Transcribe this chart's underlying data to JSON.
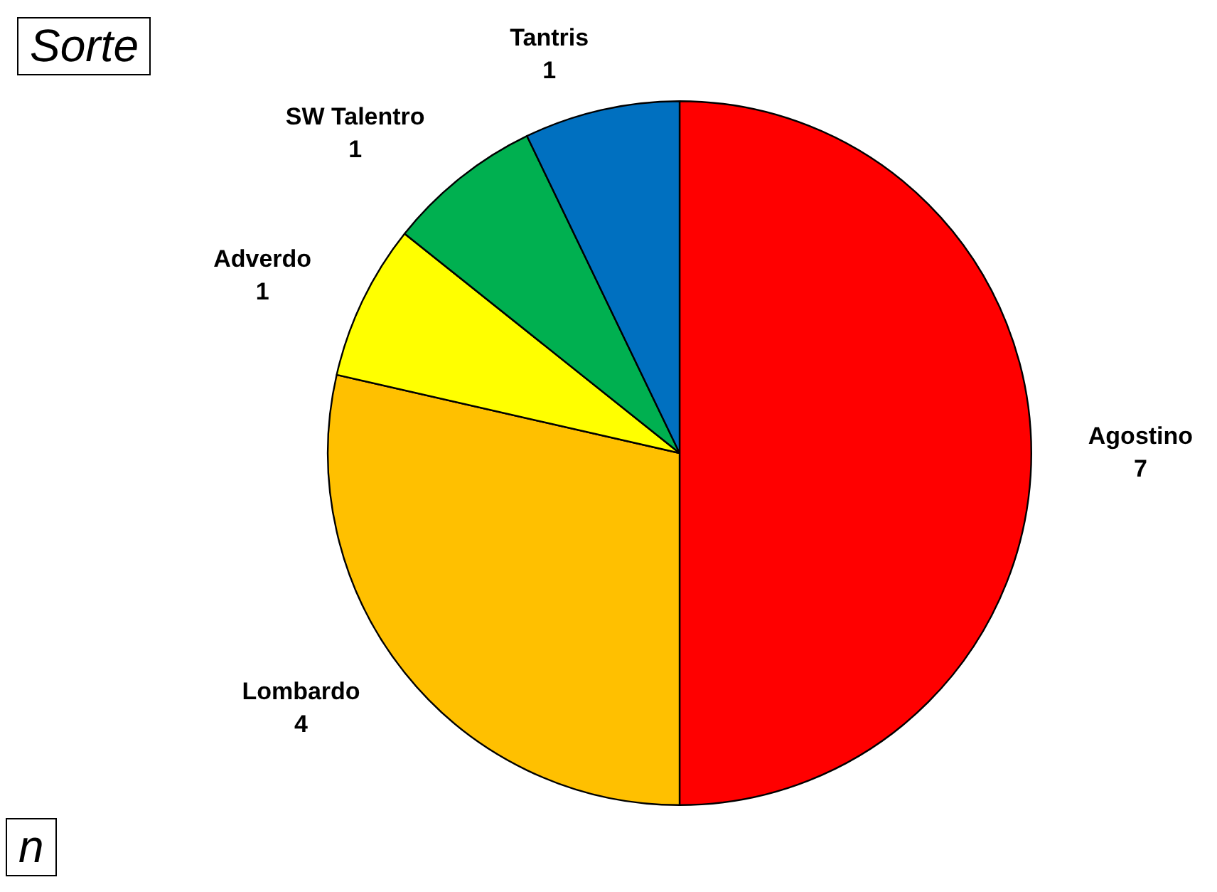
{
  "chart_data": {
    "type": "pie",
    "title": "Sorte",
    "categories": [
      "Agostino",
      "Lombardo",
      "Adverdo",
      "SW Talentro",
      "Tantris"
    ],
    "values": [
      7,
      4,
      1,
      1,
      1
    ],
    "colors": [
      "#ff0000",
      "#ffc000",
      "#ffff00",
      "#00b050",
      "#0070c0"
    ],
    "data_labels": true,
    "legend": false,
    "annotations": [
      "n"
    ]
  }
}
